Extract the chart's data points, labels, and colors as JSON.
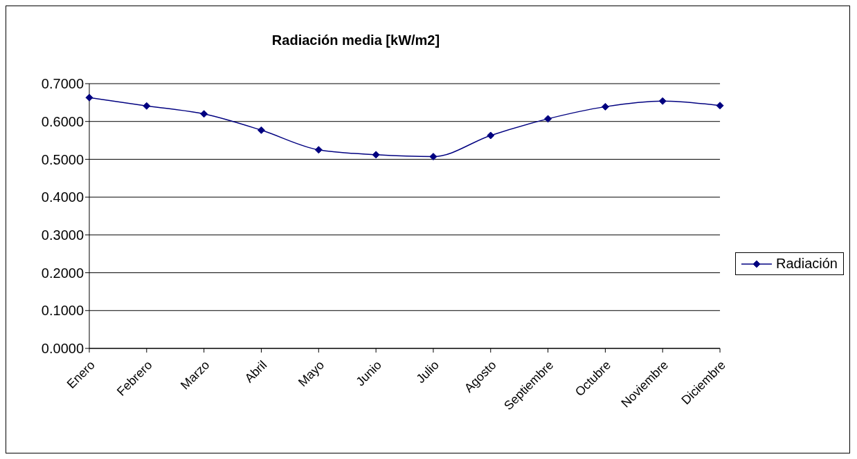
{
  "chart_data": {
    "type": "line",
    "title": "Radiación media [kW/m2]",
    "categories": [
      "Enero",
      "Febrero",
      "Marzo",
      "Abril",
      "Mayo",
      "Junio",
      "Julio",
      "Agosto",
      "Septiembre",
      "Octubre",
      "Noviembre",
      "Diciembre"
    ],
    "series": [
      {
        "name": "Radiación",
        "color": "#000080",
        "values": [
          0.663,
          0.641,
          0.62,
          0.577,
          0.525,
          0.512,
          0.507,
          0.563,
          0.607,
          0.639,
          0.654,
          0.642
        ]
      }
    ],
    "ylim": [
      0,
      0.7
    ],
    "yticks": [
      {
        "value": 0,
        "label": "0.0000"
      },
      {
        "value": 0.1,
        "label": "0.1000"
      },
      {
        "value": 0.2,
        "label": "0.2000"
      },
      {
        "value": 0.3,
        "label": "0.3000"
      },
      {
        "value": 0.4,
        "label": "0.4000"
      },
      {
        "value": 0.5,
        "label": "0.5000"
      },
      {
        "value": 0.6,
        "label": "0.6000"
      },
      {
        "value": 0.7,
        "label": "0.7000"
      }
    ],
    "grid": "y",
    "legend": "right",
    "marker": "diamond",
    "line_style": "solid"
  }
}
